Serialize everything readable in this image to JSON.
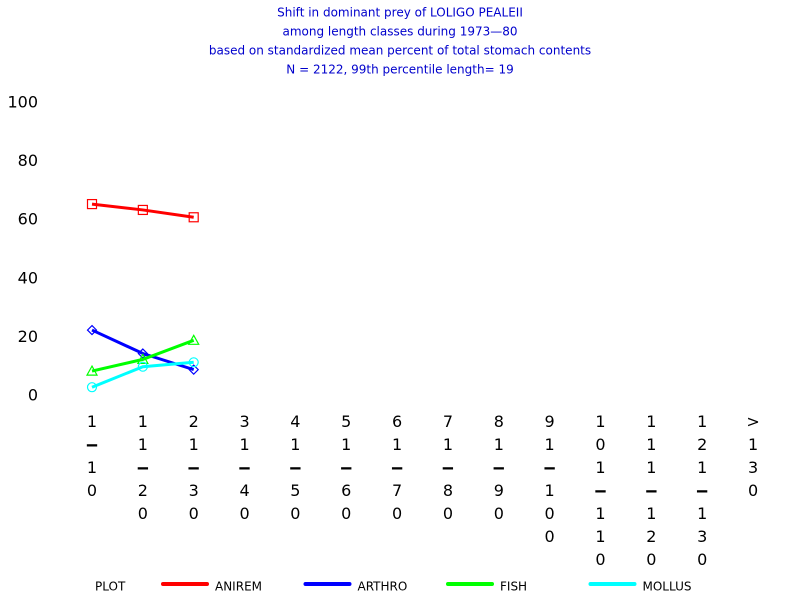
{
  "chart_data": {
    "type": "line",
    "title": [
      "Shift in dominant prey of LOLIGO PEALEII",
      "among length classes during 1973—80",
      "based on standardized mean percent of  total stomach contents",
      "N =  2122, 99th percentile  length= 19"
    ],
    "categories": [
      "1-10",
      "11-20",
      "21-30",
      "31-40",
      "41-50",
      "51-60",
      "61-70",
      "71-80",
      "81-90",
      "91-100",
      "101-110",
      "111-120",
      "121-130",
      ">130"
    ],
    "legend_title": "PLOT",
    "series": [
      {
        "name": "ANIREM",
        "color": "#ff0000",
        "marker": "square",
        "values": [
          65.5,
          63.5,
          61,
          null,
          null,
          null,
          null,
          null,
          null,
          null,
          null,
          null,
          null,
          null
        ]
      },
      {
        "name": "ARTHRO",
        "color": "#0000ff",
        "marker": "diamond",
        "values": [
          22.5,
          14.5,
          9,
          null,
          null,
          null,
          null,
          null,
          null,
          null,
          null,
          null,
          null,
          null
        ]
      },
      {
        "name": "FISH",
        "color": "#00ff00",
        "marker": "triangle",
        "values": [
          8.5,
          12.5,
          19,
          null,
          null,
          null,
          null,
          null,
          null,
          null,
          null,
          null,
          null,
          null
        ]
      },
      {
        "name": "MOLLUS",
        "color": "#00ffff",
        "marker": "circle",
        "values": [
          3,
          10,
          11.5,
          null,
          null,
          null,
          null,
          null,
          null,
          null,
          null,
          null,
          null,
          null
        ]
      }
    ],
    "ylim": [
      0,
      100
    ],
    "yticks": [
      0,
      20,
      40,
      60,
      80,
      100
    ],
    "grid": false,
    "legend": "bottom"
  }
}
